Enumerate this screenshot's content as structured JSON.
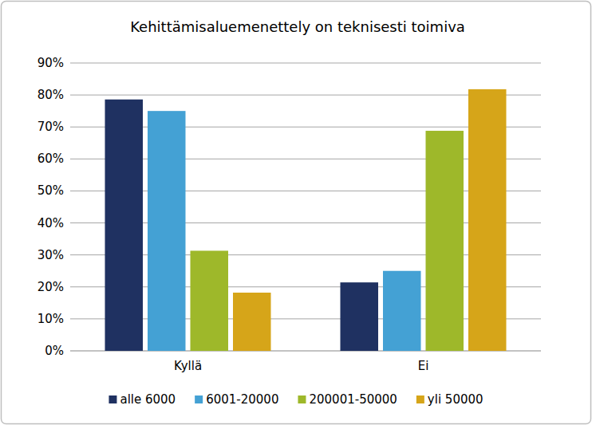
{
  "chart_data": {
    "type": "bar",
    "title": "Kehittämisaluemenettely on teknisesti toimiva",
    "categories": [
      "Kyllä",
      "Ei"
    ],
    "series": [
      {
        "name": "alle 6000",
        "color": "#1f3161",
        "values": [
          78.6,
          21.4
        ]
      },
      {
        "name": "6001-20000",
        "color": "#44a1d4",
        "values": [
          75,
          25
        ]
      },
      {
        "name": "200001-50000",
        "color": "#9eb82a",
        "values": [
          31.3,
          68.8
        ]
      },
      {
        "name": "yli 50000",
        "color": "#d6a519",
        "values": [
          18.2,
          81.8
        ]
      }
    ],
    "ylim": [
      0,
      90
    ],
    "yticks": [
      {
        "value": 0,
        "label": "0%"
      },
      {
        "value": 10,
        "label": "10%"
      },
      {
        "value": 20,
        "label": "20%"
      },
      {
        "value": 30,
        "label": "30%"
      },
      {
        "value": 40,
        "label": "40%"
      },
      {
        "value": 50,
        "label": "50%"
      },
      {
        "value": 60,
        "label": "60%"
      },
      {
        "value": 70,
        "label": "70%"
      },
      {
        "value": 80,
        "label": "80%"
      },
      {
        "value": 90,
        "label": "90%"
      }
    ],
    "grid": true,
    "legend": "bottom"
  }
}
